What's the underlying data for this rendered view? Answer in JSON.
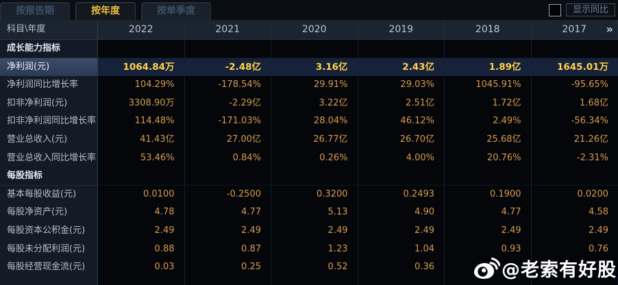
{
  "tabs": [
    {
      "label": "按报告期",
      "active": false
    },
    {
      "label": "按年度",
      "active": true
    },
    {
      "label": "按单季度",
      "active": false
    }
  ],
  "controls": {
    "show_yoy_label": "显示同比",
    "checkbox_checked": false
  },
  "table": {
    "corner_header": "科目\\年度",
    "year_columns": [
      "2022",
      "2021",
      "2020",
      "2019",
      "2018",
      "2017"
    ],
    "more_icon": "»",
    "rows": [
      {
        "type": "section",
        "label": "成长能力指标",
        "values": [
          "",
          "",
          "",
          "",
          "",
          ""
        ]
      },
      {
        "type": "data",
        "highlight": true,
        "label": "净利润(元)",
        "values": [
          "1064.84万",
          "-2.48亿",
          "3.16亿",
          "2.43亿",
          "1.89亿",
          "1645.01万"
        ]
      },
      {
        "type": "data",
        "label": "净利润同比增长率",
        "values": [
          "104.29%",
          "-178.54%",
          "29.91%",
          "29.03%",
          "1045.91%",
          "-95.65%"
        ]
      },
      {
        "type": "data",
        "label": "扣非净利润(元)",
        "values": [
          "3308.90万",
          "-2.29亿",
          "3.22亿",
          "2.51亿",
          "1.72亿",
          "1.68亿"
        ]
      },
      {
        "type": "data",
        "label": "扣非净利润同比增长率",
        "values": [
          "114.48%",
          "-171.03%",
          "28.04%",
          "46.12%",
          "2.49%",
          "-56.34%"
        ]
      },
      {
        "type": "data",
        "label": "营业总收入(元)",
        "values": [
          "41.43亿",
          "27.00亿",
          "26.77亿",
          "26.70亿",
          "25.68亿",
          "21.26亿"
        ]
      },
      {
        "type": "data",
        "label": "营业总收入同比增长率",
        "values": [
          "53.46%",
          "0.84%",
          "0.26%",
          "4.00%",
          "20.76%",
          "-2.31%"
        ]
      },
      {
        "type": "section",
        "label": "每股指标",
        "values": [
          "",
          "",
          "",
          "",
          "",
          ""
        ]
      },
      {
        "type": "data",
        "label": "基本每股收益(元)",
        "values": [
          "0.0100",
          "-0.2500",
          "0.3200",
          "0.2493",
          "0.1900",
          "0.0200"
        ]
      },
      {
        "type": "data",
        "label": "每股净资产(元)",
        "values": [
          "4.78",
          "4.77",
          "5.13",
          "4.90",
          "4.77",
          "4.58"
        ]
      },
      {
        "type": "data",
        "label": "每股资本公积金(元)",
        "values": [
          "2.49",
          "2.49",
          "2.49",
          "2.49",
          "2.49",
          "2.49"
        ]
      },
      {
        "type": "data",
        "label": "每股未分配利润(元)",
        "values": [
          "0.88",
          "0.87",
          "1.23",
          "1.04",
          "0.93",
          "0.76"
        ]
      },
      {
        "type": "data",
        "label": "每股经营现金流(元)",
        "values": [
          "0.03",
          "0.25",
          "0.52",
          "0.36",
          "",
          ""
        ]
      }
    ]
  },
  "watermark": {
    "icon": "weibo-icon",
    "text": "@老索有好股"
  },
  "colors": {
    "accent_yellow": "#eebe3d",
    "value_orange": "#d99c4f",
    "highlight_value": "#ffd14b",
    "header_bg": "#1b2531",
    "label_col_bg": "#131b26",
    "highlight_row_bg": "#16223a"
  }
}
